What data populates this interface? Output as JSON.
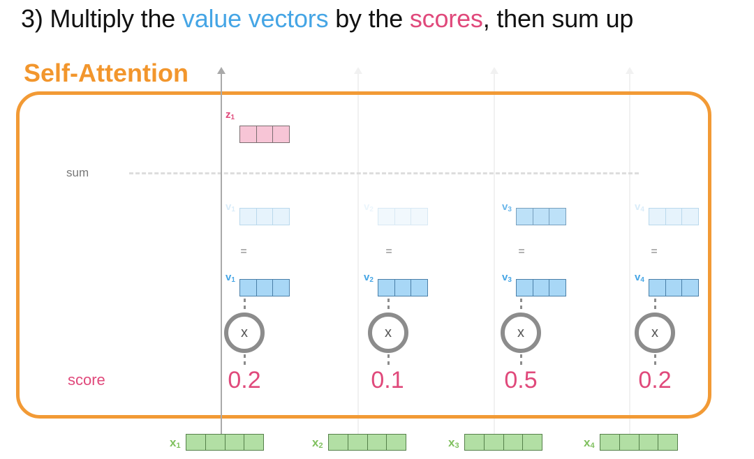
{
  "heading": {
    "prefix": "3) Multiply the ",
    "value_vectors": "value vectors",
    "middle": " by the ",
    "scores": "scores",
    "suffix": ", then sum up"
  },
  "section_title": "Self-Attention",
  "row_labels": {
    "sum": "sum",
    "score": "score"
  },
  "output": {
    "label": "z",
    "index": "1"
  },
  "multiply_symbol": "x",
  "equals_symbol": "=",
  "columns": [
    {
      "value_label": "v",
      "value_index": "1",
      "input_label": "x",
      "input_index": "1",
      "score": "0.2",
      "weighted_opacity": 0.2
    },
    {
      "value_label": "v",
      "value_index": "2",
      "input_label": "x",
      "input_index": "2",
      "score": "0.1",
      "weighted_opacity": 0.1
    },
    {
      "value_label": "v",
      "value_index": "3",
      "input_label": "x",
      "input_index": "3",
      "score": "0.5",
      "weighted_opacity": 0.5
    },
    {
      "value_label": "v",
      "value_index": "4",
      "input_label": "x",
      "input_index": "4",
      "score": "0.2",
      "weighted_opacity": 0.2
    }
  ],
  "colors": {
    "accent_orange": "#f29a35",
    "value_blue": "#45a5e5",
    "score_pink": "#e0497b",
    "input_green": "#b2dfa4"
  }
}
